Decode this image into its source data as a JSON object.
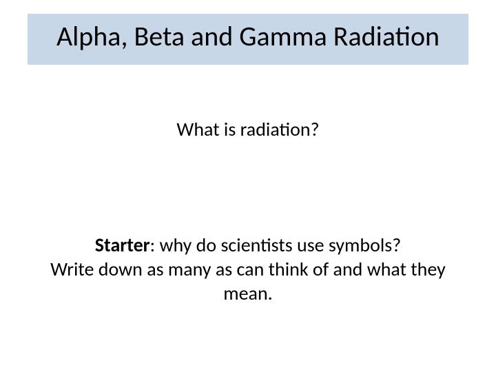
{
  "slide": {
    "title": "Alpha, Beta and Gamma Radiation",
    "subtitle": "What is radiation?",
    "starter_label": "Starter",
    "starter_question": ": why do scientists use symbols?",
    "starter_instruction": "Write down as many as can think of and what they mean."
  },
  "styling": {
    "title_background": "#c7d7e7",
    "slide_background": "#ffffff",
    "text_color": "#000000",
    "title_fontsize": 40,
    "body_fontsize": 28,
    "font_family": "Calibri"
  }
}
